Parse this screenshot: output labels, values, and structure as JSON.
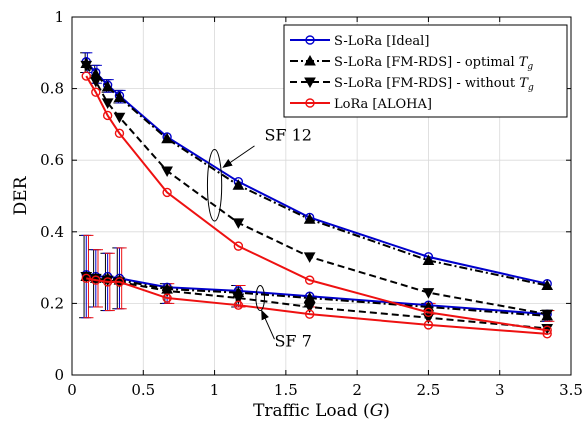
{
  "chart_data": {
    "type": "line",
    "xlabel": "Traffic Load (",
    "xlabel_var": "G",
    "xlabel_close": ")",
    "ylabel": "DER",
    "xlim": [
      0,
      3.5
    ],
    "ylim": [
      0,
      1
    ],
    "xticks": [
      0,
      0.5,
      1,
      1.5,
      2,
      2.5,
      3,
      3.5
    ],
    "xtick_labels": [
      "0",
      "0.5",
      "1",
      "1.5",
      "2",
      "2.5",
      "3",
      "3.5"
    ],
    "yticks": [
      0,
      0.2,
      0.4,
      0.6,
      0.8,
      1
    ],
    "ytick_labels": [
      "0",
      "0.2",
      "0.4",
      "0.6",
      "0.8",
      "1"
    ],
    "grid": true,
    "legend_position": "top-right",
    "x": [
      0.1,
      0.167,
      0.25,
      0.333,
      0.667,
      1.167,
      1.667,
      2.5,
      3.333
    ],
    "series": [
      {
        "name": "S-LoRa [Ideal]",
        "name_sub": "",
        "color": "#0000cc",
        "style": "solid",
        "marker": "circle",
        "sf12": [
          0.875,
          0.845,
          0.81,
          0.78,
          0.665,
          0.54,
          0.44,
          0.33,
          0.255
        ],
        "sf7": [
          0.28,
          0.275,
          0.275,
          0.27,
          0.245,
          0.235,
          0.22,
          0.195,
          0.17
        ]
      },
      {
        "name": "S-LoRa [FM-RDS] - optimal ",
        "name_sub": "g",
        "color": "#000000",
        "style": "dashdot",
        "marker": "triangle-up",
        "sf12": [
          0.87,
          0.84,
          0.805,
          0.775,
          0.66,
          0.53,
          0.435,
          0.32,
          0.25
        ],
        "sf7": [
          0.275,
          0.27,
          0.27,
          0.265,
          0.24,
          0.23,
          0.215,
          0.19,
          0.165
        ]
      },
      {
        "name": "S-LoRa [FM-RDS] - without ",
        "name_sub": "g",
        "color": "#000000",
        "style": "dashed",
        "marker": "triangle-down",
        "sf12": [
          0.865,
          0.82,
          0.76,
          0.72,
          0.57,
          0.425,
          0.33,
          0.23,
          0.17
        ],
        "sf7": [
          0.275,
          0.27,
          0.265,
          0.26,
          0.235,
          0.215,
          0.19,
          0.16,
          0.13
        ]
      },
      {
        "name": "LoRa [ALOHA]",
        "name_sub": "",
        "color": "#ee1111",
        "style": "solid",
        "marker": "circle",
        "sf12": [
          0.835,
          0.79,
          0.725,
          0.675,
          0.51,
          0.36,
          0.265,
          0.175,
          0.125
        ],
        "sf7": [
          0.27,
          0.265,
          0.26,
          0.26,
          0.215,
          0.195,
          0.17,
          0.14,
          0.115
        ]
      }
    ],
    "errorbars_sf12": [
      {
        "x": 0.1,
        "lo": 0.845,
        "hi": 0.9
      },
      {
        "x": 0.167,
        "lo": 0.815,
        "hi": 0.865
      },
      {
        "x": 0.25,
        "lo": 0.79,
        "hi": 0.825
      },
      {
        "x": 0.333,
        "lo": 0.76,
        "hi": 0.795
      }
    ],
    "errorbars_sf7": [
      {
        "x": 0.1,
        "lo": 0.16,
        "hi": 0.39
      },
      {
        "x": 0.167,
        "lo": 0.19,
        "hi": 0.35
      },
      {
        "x": 0.25,
        "lo": 0.18,
        "hi": 0.34
      },
      {
        "x": 0.333,
        "lo": 0.185,
        "hi": 0.355
      },
      {
        "x": 0.667,
        "lo": 0.2,
        "hi": 0.255
      },
      {
        "x": 1.167,
        "lo": 0.19,
        "hi": 0.25
      },
      {
        "x": 1.667,
        "lo": 0.19,
        "hi": 0.22
      },
      {
        "x": 2.5,
        "lo": 0.17,
        "hi": 0.2
      },
      {
        "x": 3.333,
        "lo": 0.15,
        "hi": 0.18
      }
    ],
    "annotations": [
      {
        "text": "SF 12",
        "ellipse_center": [
          1.0,
          0.53
        ],
        "ellipse_rx": 0.05,
        "ellipse_ry": 0.1,
        "label_at": [
          1.35,
          0.655
        ],
        "arrow_from": [
          1.28,
          0.64
        ],
        "arrow_to": [
          1.06,
          0.58
        ]
      },
      {
        "text": "SF 7",
        "ellipse_center": [
          1.32,
          0.215
        ],
        "ellipse_rx": 0.03,
        "ellipse_ry": 0.035,
        "label_at": [
          1.42,
          0.08
        ],
        "arrow_from": [
          1.42,
          0.1
        ],
        "arrow_to": [
          1.33,
          0.18
        ]
      }
    ]
  }
}
